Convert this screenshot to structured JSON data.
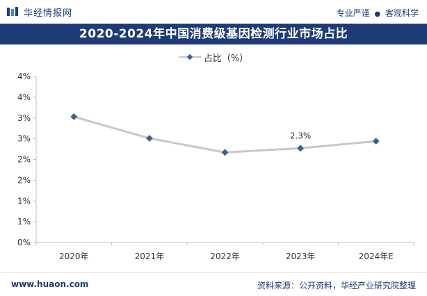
{
  "header": {
    "brand": "华经情报网",
    "tagline_left": "专业严谨",
    "tagline_right": "客观科学"
  },
  "title": "2020-2024年中国消费级基因检测行业市场占比",
  "legend": {
    "label": "占比（%）"
  },
  "footer": {
    "url": "www.huaon.com",
    "source": "资料来源：公开资料，华经产业研究院整理"
  },
  "colors": {
    "brand": "#1f3c78",
    "line": "#c8c8c8",
    "marker": "#3f5f8f"
  },
  "chart_data": {
    "type": "line",
    "title": "2020-2024年中国消费级基因检测行业市场占比",
    "categories": [
      "2020年",
      "2021年",
      "2022年",
      "2023年",
      "2024年E"
    ],
    "series": [
      {
        "name": "占比（%）",
        "values": [
          3.03,
          2.51,
          2.17,
          2.27,
          2.44
        ]
      }
    ],
    "data_labels": [
      null,
      null,
      null,
      "2.3%",
      null
    ],
    "ylim": [
      0,
      4
    ],
    "yticks": [
      0,
      0.5,
      1,
      1.5,
      2,
      2.5,
      3,
      3.5,
      4
    ],
    "ytick_labels": [
      "0%",
      "1%",
      "1%",
      "2%",
      "2%",
      "3%",
      "3%",
      "4%",
      "4%"
    ],
    "xlabel": "",
    "ylabel": "",
    "grid": false,
    "legend_position": "top-center"
  }
}
